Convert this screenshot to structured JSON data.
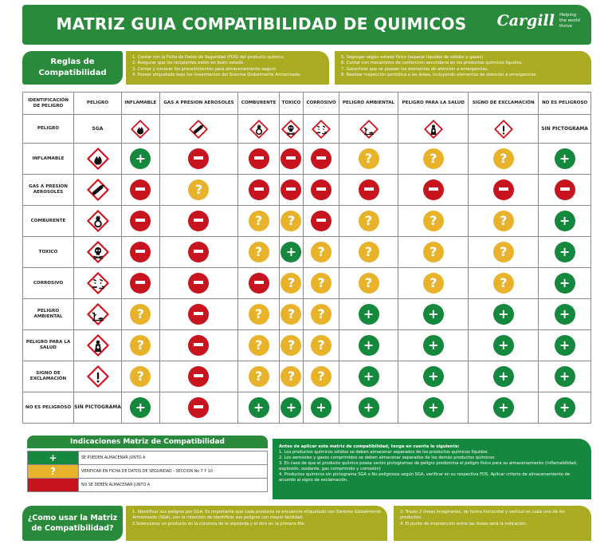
{
  "header": {
    "title": "MATRIZ GUIA COMPATIBILIDAD DE QUIMICOS",
    "brand": "Cargill",
    "tagline": "Helping the world thrive"
  },
  "rules": {
    "label": "Reglas de Compatibilidad",
    "col1": [
      "1. Contar con la Ficha de Datos de Seguridad (FDS) del producto químico.",
      "2. Asegurar que los recipientes estén en buen estado.",
      "3. Contar y conocer los procedimientos para almacenamiento seguro.",
      "4. Poseer etiquetado bajo los lineamientos del Sistema Globalmente Armonizado."
    ],
    "col2": [
      "5. Segregar según estado físico (separar líquidos de sólidos y gases)",
      "6. Contar con mecanismo de contención secundaria en los productos químicos líquidos.",
      "7. Garantizar que se posean los elementos de atención a emergencias.",
      "8. Realizar inspección periódica a las áreas, incluyendo elementos de atención a emergencias."
    ]
  },
  "matrix": {
    "corner_header": "IDENTIFICACIÓN DE PELIGRO",
    "pict_header": "PELIGRO",
    "columns": [
      "INFLAMABLE",
      "GAS A PRESION AEROSOLES",
      "COMBURENTE",
      "TOXICO",
      "CORROSIVO",
      "PELIGRO AMBIENTAL",
      "PELIGRO PARA LA SALUD",
      "SIGNO DE EXCLAMACIÓN",
      "NO ES PELIGROSO"
    ],
    "column_icons": [
      "flame-icon",
      "gas-cylinder-icon",
      "flame-over-circle-icon",
      "skull-icon",
      "corrosion-icon",
      "environment-icon",
      "health-hazard-icon",
      "exclamation-icon",
      "none"
    ],
    "sga_row": {
      "label": "PELIGRO",
      "sga": "SGA",
      "last": "SIN PICTOGRAMA"
    },
    "rows": [
      {
        "label": "INFLAMABLE",
        "icon": "flame-icon",
        "cells": [
          "green",
          "red",
          "red",
          "red",
          "red",
          "yellow",
          "yellow",
          "yellow",
          "green"
        ]
      },
      {
        "label": "GAS A PRESION AEROSOLES",
        "icon": "gas-cylinder-icon",
        "cells": [
          "red",
          "yellow",
          "red",
          "red",
          "red",
          "red",
          "red",
          "red",
          "red"
        ]
      },
      {
        "label": "COMBURENTE",
        "icon": "flame-over-circle-icon",
        "cells": [
          "red",
          "red",
          "yellow",
          "yellow",
          "red",
          "yellow",
          "yellow",
          "yellow",
          "green"
        ]
      },
      {
        "label": "TOXICO",
        "icon": "skull-icon",
        "cells": [
          "red",
          "red",
          "yellow",
          "green",
          "yellow",
          "yellow",
          "yellow",
          "yellow",
          "green"
        ]
      },
      {
        "label": "CORROSIVO",
        "icon": "corrosion-icon",
        "cells": [
          "red",
          "red",
          "red",
          "yellow",
          "yellow",
          "yellow",
          "yellow",
          "yellow",
          "green"
        ]
      },
      {
        "label": "PELIGRO AMBIENTAL",
        "icon": "environment-icon",
        "cells": [
          "yellow",
          "red",
          "yellow",
          "yellow",
          "yellow",
          "green",
          "green",
          "green",
          "green"
        ]
      },
      {
        "label": "PELIGRO PARA LA SALUD",
        "icon": "health-hazard-icon",
        "cells": [
          "yellow",
          "red",
          "yellow",
          "yellow",
          "yellow",
          "green",
          "green",
          "green",
          "green"
        ]
      },
      {
        "label": "SIGNO DE EXCLAMACIÓN",
        "icon": "exclamation-icon",
        "cells": [
          "yellow",
          "red",
          "yellow",
          "yellow",
          "yellow",
          "green",
          "green",
          "green",
          "green"
        ]
      },
      {
        "label": "NO ES PELIGROSO",
        "icon_text": "SIN PICTOGRAMA",
        "cells": [
          "green",
          "red",
          "green",
          "green",
          "green",
          "green",
          "green",
          "green",
          "green"
        ]
      }
    ]
  },
  "legend": {
    "title": "Indicaciones Matriz de Compatibilidad",
    "items": [
      {
        "symbol": "+",
        "color": "#14883c",
        "text": "SE PUEDEN ALMACENAR JUNTO A"
      },
      {
        "symbol": "?",
        "color": "#e8b32a",
        "text": "VERIFICAR EN FICHA DE DATOS DE SEGURIDAD - SECCION No 7 Y 10"
      },
      {
        "symbol": "-",
        "color": "#c8141e",
        "text": "NO SE DEBEN ALMACENAR JUNTO A"
      }
    ]
  },
  "notes": {
    "lead": "Antes de aplicar esta matriz de compatibilidad, tenga en cuenta lo siguiente:",
    "items": [
      "1. Los productos químicos sólidos se deben almacenar separados de los productos químicos líquidos.",
      "2. Los aerosoles y gases comprimidos se deben almacenar separados de los demás productos químicos.",
      "3. En caso de que el producto químico posea varios pictogramas de peligro predomina el peligro físico para su almacenamiento (inflamabilidad, explosión, oxidante, gas comprimido y corrosión)",
      "4. Productos químicos sin pictograma SGA o No peligrosos según SGA, verificar en su respectiva FDS. Aplicar criterio de almacenamiento de acuerdo al signo de exclamación."
    ]
  },
  "howto": {
    "label": "¿Como usar la Matriz de Compatibilidad?",
    "col1": [
      "1. Identificar sus peligros por SGA. Es importante que cada producto se encuentre etiquetado con Sistema Globalmente Armonizado (SGA), con la intención de identificar sus peligros con mayor facilidad.",
      "2.Seleccionar un producto en la columna de la izquierda y el otro en la primera fila."
    ],
    "col2": [
      "3. Trazar 2 líneas imaginarias, de forma horizontal y vertical en cada uno de los productos.",
      "4. El punto de intersección entre las líneas será la indicación."
    ]
  },
  "colors": {
    "green": "#14883c",
    "yellow": "#e8b32a",
    "red": "#c8141e",
    "olive": "#a9ab20",
    "header_green": "#2a8a3c"
  }
}
